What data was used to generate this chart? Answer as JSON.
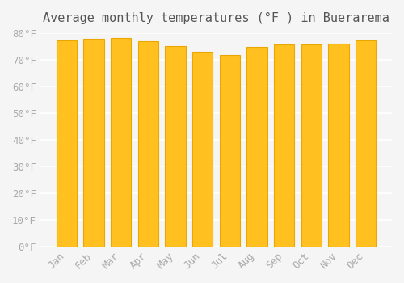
{
  "title": "Average monthly temperatures (°F ) in Buerarema",
  "months": [
    "Jan",
    "Feb",
    "Mar",
    "Apr",
    "May",
    "Jun",
    "Jul",
    "Aug",
    "Sep",
    "Oct",
    "Nov",
    "Dec"
  ],
  "values": [
    77.2,
    77.9,
    78.1,
    76.8,
    75.2,
    73.0,
    71.8,
    74.7,
    75.8,
    75.6,
    75.9,
    77.3
  ],
  "bar_color_main": "#FFC020",
  "bar_color_edge": "#E8A800",
  "background_color": "#F5F5F5",
  "grid_color": "#FFFFFF",
  "text_color": "#AAAAAA",
  "ylim": [
    0,
    80
  ],
  "yticks": [
    0,
    10,
    20,
    30,
    40,
    50,
    60,
    70,
    80
  ],
  "ytick_labels": [
    "0°F",
    "10°F",
    "20°F",
    "30°F",
    "40°F",
    "50°F",
    "60°F",
    "70°F",
    "80°F"
  ],
  "title_fontsize": 11,
  "tick_fontsize": 9
}
